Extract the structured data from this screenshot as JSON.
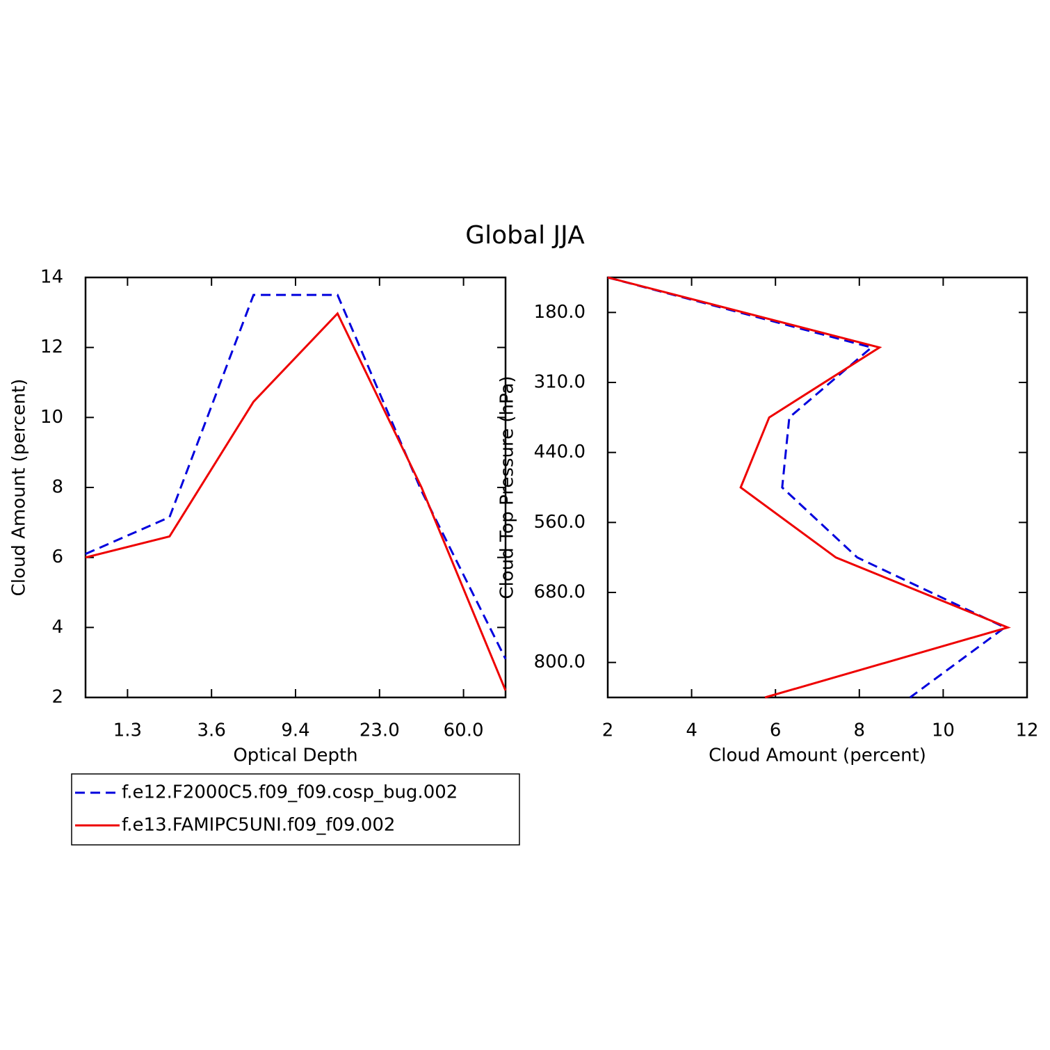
{
  "title": "Global JJA",
  "chart_data": [
    {
      "type": "line",
      "x_label": "Optical Depth",
      "y_label": "Cloud Amount (percent)",
      "x": [
        0,
        1,
        2,
        3,
        4,
        5
      ],
      "xlim": [
        0,
        5
      ],
      "xticks": [
        {
          "value": 0.5,
          "label": "1.3"
        },
        {
          "value": 1.5,
          "label": "3.6"
        },
        {
          "value": 2.5,
          "label": "9.4"
        },
        {
          "value": 3.5,
          "label": "23.0"
        },
        {
          "value": 4.5,
          "label": "60.0"
        }
      ],
      "ylim": [
        2,
        14
      ],
      "yticks": [
        2,
        4,
        6,
        8,
        10,
        12,
        14
      ],
      "series": [
        {
          "name": "f.e12.F2000C5.f09_f09.cosp_bug.002",
          "color": "#0000dd",
          "dashed": true,
          "values": [
            6.1,
            7.15,
            13.5,
            13.5,
            7.9,
            3.1
          ]
        },
        {
          "name": "f.e13.FAMIPC5UNI.f09_f09.002",
          "color": "#ee0000",
          "dashed": false,
          "values": [
            6.0,
            6.6,
            10.45,
            12.97,
            8.0,
            2.2
          ]
        }
      ]
    },
    {
      "type": "line",
      "orientation": "horizontal",
      "x_label": "Cloud Amount (percent)",
      "y_label": "Cloud Top Pressure (hPa)",
      "y": [
        0,
        1,
        2,
        3,
        4,
        5,
        6
      ],
      "ylim": [
        0,
        6
      ],
      "y_inverted": true,
      "yticks": [
        {
          "value": 0.5,
          "label": "180.0"
        },
        {
          "value": 1.5,
          "label": "310.0"
        },
        {
          "value": 2.5,
          "label": "440.0"
        },
        {
          "value": 3.5,
          "label": "560.0"
        },
        {
          "value": 4.5,
          "label": "680.0"
        },
        {
          "value": 5.5,
          "label": "800.0"
        }
      ],
      "xlim": [
        2,
        12
      ],
      "xticks": [
        2,
        4,
        6,
        8,
        10,
        12
      ],
      "series": [
        {
          "color": "#0000dd",
          "dashed": true,
          "values": [
            2.0,
            8.29,
            6.33,
            6.16,
            7.95,
            11.47,
            9.21
          ]
        },
        {
          "color": "#ee0000",
          "dashed": false,
          "values": [
            2.0,
            8.48,
            5.85,
            5.17,
            7.44,
            11.54,
            5.75
          ]
        }
      ]
    }
  ]
}
